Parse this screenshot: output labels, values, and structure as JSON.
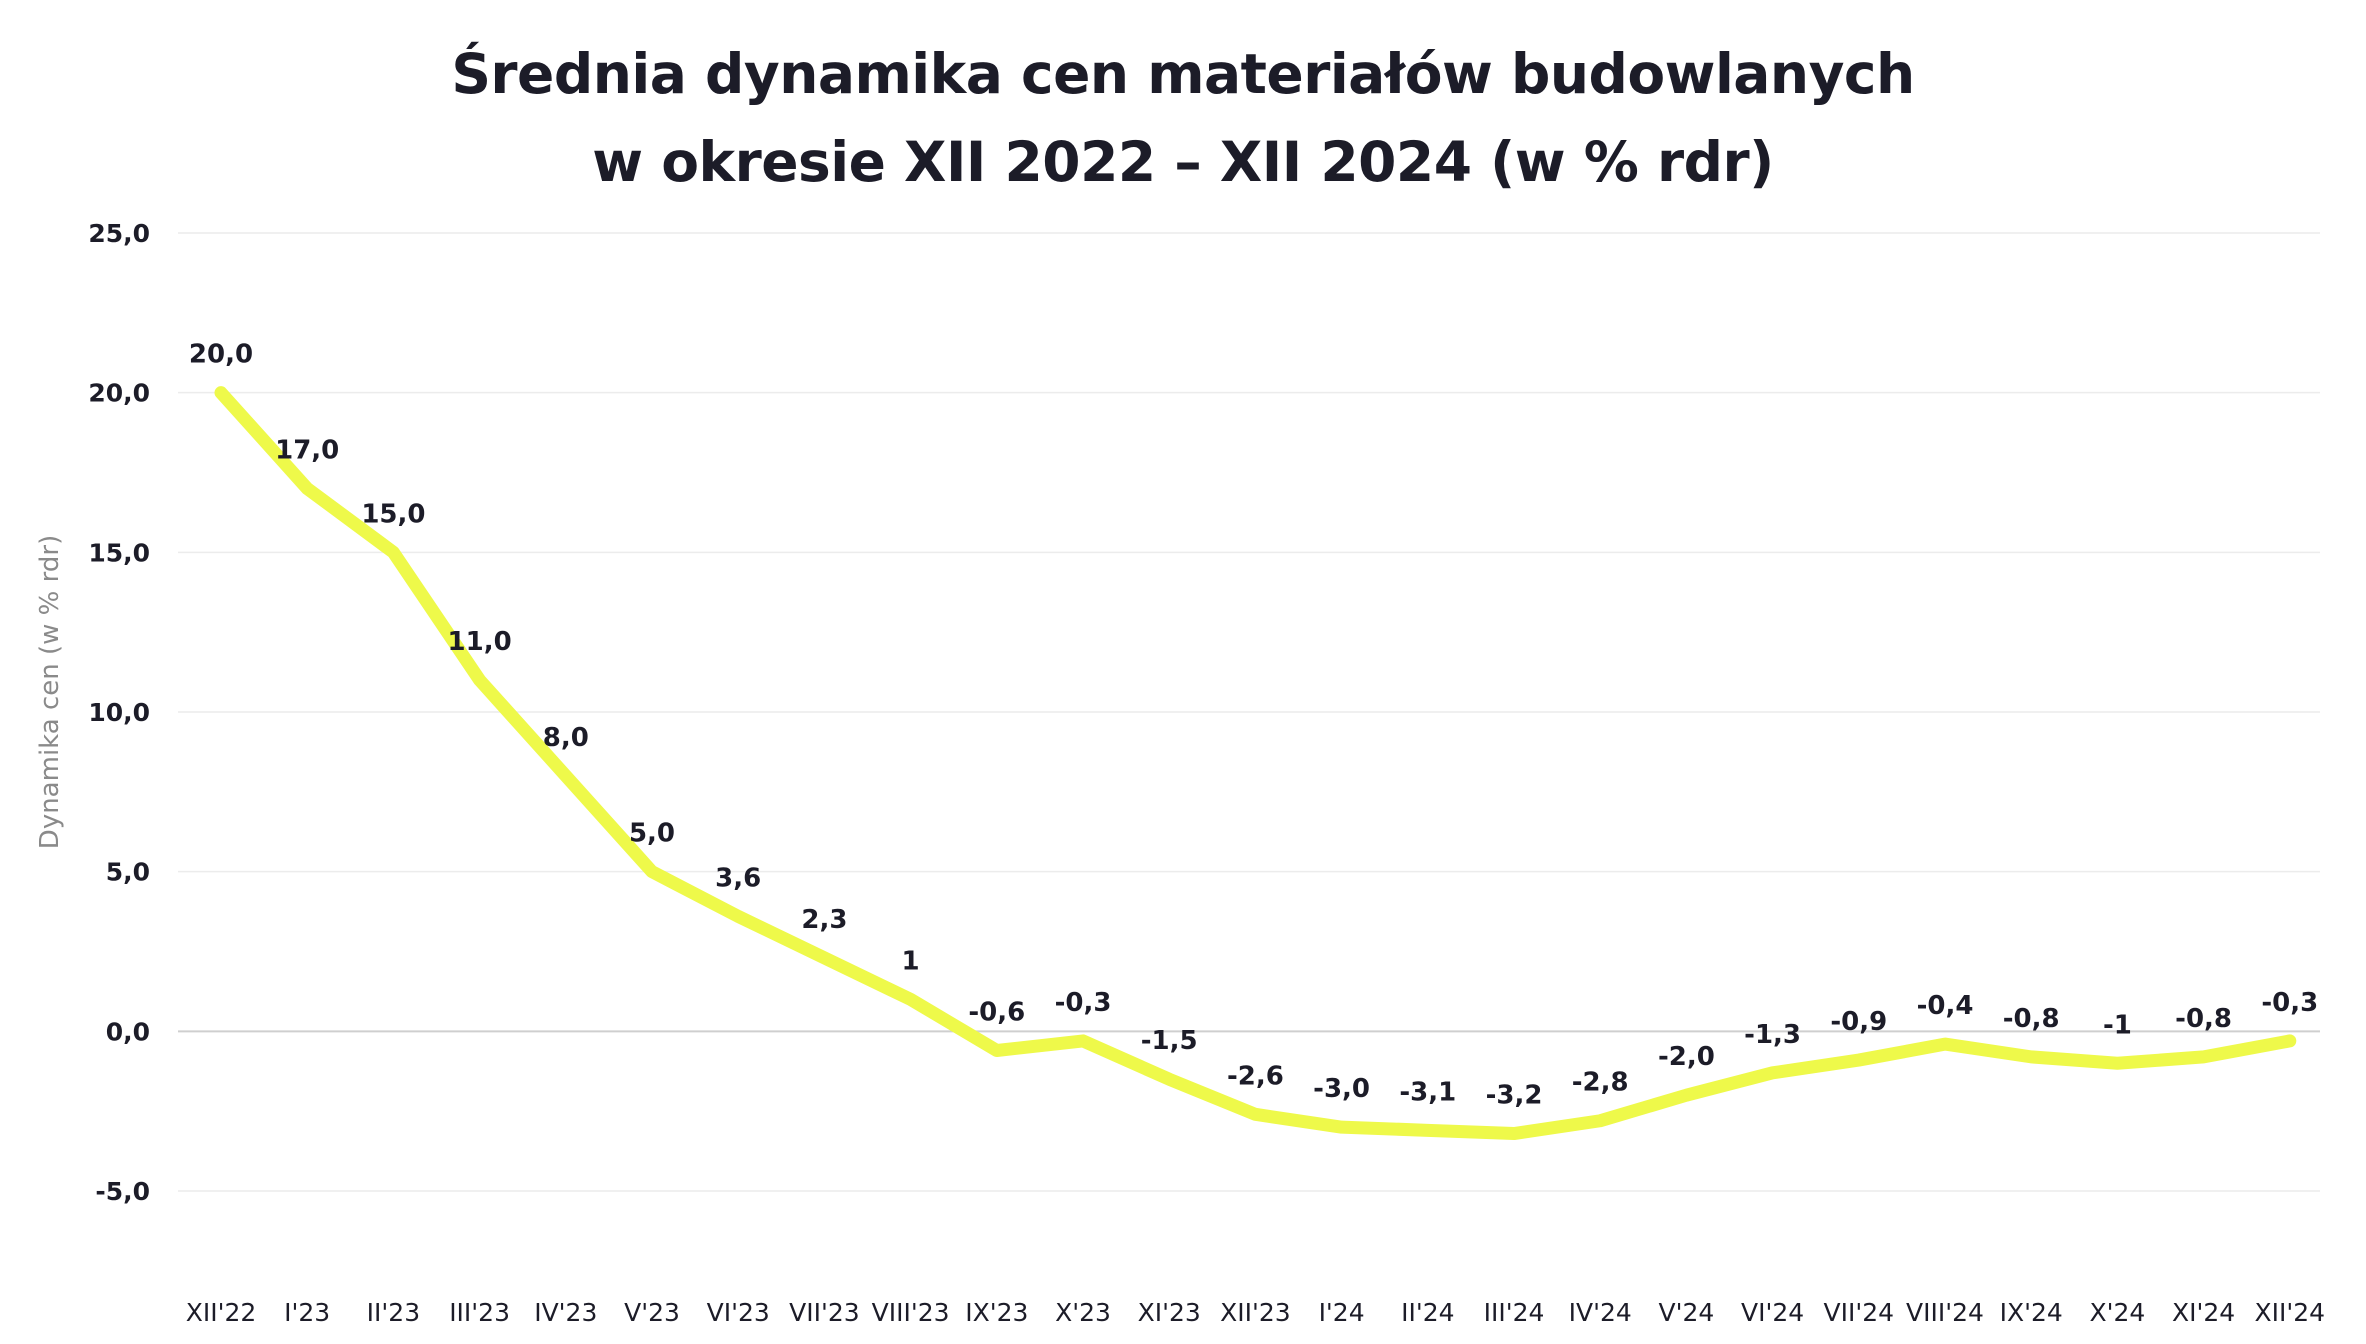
{
  "chart_data": {
    "type": "line",
    "title_lines": [
      "Średnia dynamika cen materiałów budowlanych",
      "w okresie XII 2022 – XII 2024 (w % rdr)"
    ],
    "ylabel": "Dynamika cen (w % rdr)",
    "xlabel": "",
    "ylim": [
      -5,
      25
    ],
    "yticks": [
      25,
      20,
      15,
      10,
      5,
      0,
      -5
    ],
    "ytick_labels": [
      "25,0",
      "20,0",
      "15,0",
      "10,0",
      "5,0",
      "0,0",
      "-5,0"
    ],
    "grid": true,
    "line_color": "#eef94a",
    "categories": [
      "XII'22",
      "I'23",
      "II'23",
      "III'23",
      "IV'23",
      "V'23",
      "VI'23",
      "VII'23",
      "VIII'23",
      "IX'23",
      "X'23",
      "XI'23",
      "XII'23",
      "I'24",
      "II'24",
      "III'24",
      "IV'24",
      "V'24",
      "VI'24",
      "VII'24",
      "VIII'24",
      "IX'24",
      "X'24",
      "XI'24",
      "XII'24"
    ],
    "values": [
      20.0,
      17.0,
      15.0,
      11.0,
      8.0,
      5.0,
      3.6,
      2.3,
      1.0,
      -0.6,
      -0.3,
      -1.5,
      -2.6,
      -3.0,
      -3.1,
      -3.2,
      -2.8,
      -2.0,
      -1.3,
      -0.9,
      -0.4,
      -0.8,
      -1.0,
      -0.8,
      -0.3
    ],
    "data_labels": [
      "20,0",
      "17,0",
      "15,0",
      "11,0",
      "8,0",
      "5,0",
      "3,6",
      "2,3",
      "1",
      "-0,6",
      "-0,3",
      "-1,5",
      "-2,6",
      "-3,0",
      "-3,1",
      "-3,2",
      "-2,8",
      "-2,0",
      "-1,3",
      "-0,9",
      "-0,4",
      "-0,8",
      "-1",
      "-0,8",
      "-0,3"
    ]
  }
}
